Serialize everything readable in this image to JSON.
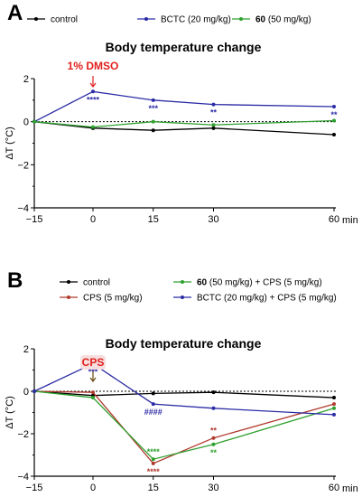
{
  "colors": {
    "control": "#000000",
    "bctc": "#2b2ba6",
    "cmpd60": "#2ea02e",
    "cps": "#b03a2e",
    "annotation": "#e0211f",
    "annotation_bg": "#f6dede"
  },
  "chart_data": [
    {
      "type": "line",
      "panel": "A",
      "title": "Body temperature change",
      "ylabel": "ΔT (°C)",
      "x_unit": "min",
      "x": [
        -15,
        0,
        15,
        30,
        60
      ],
      "x_ticks": [
        "−15",
        "0",
        "15",
        "30",
        "60"
      ],
      "ylim": [
        -4,
        2
      ],
      "y_ticks": [
        "2",
        "0",
        "−2",
        "−4"
      ],
      "baseline": 0,
      "legend": [
        {
          "name_bold": "",
          "name": "control",
          "color_key": "control"
        },
        {
          "name_bold": "",
          "name": "BCTC (20 mg/kg)",
          "color_key": "bctc"
        },
        {
          "name_bold": "60",
          "name": " (50 mg/kg)",
          "color_key": "cmpd60"
        }
      ],
      "series": [
        {
          "name": "control",
          "color_key": "control",
          "values": [
            0,
            -0.3,
            -0.4,
            -0.3,
            -0.6
          ]
        },
        {
          "name": "BCTC (20 mg/kg)",
          "color_key": "bctc",
          "values": [
            0,
            1.4,
            1.0,
            0.8,
            0.7
          ]
        },
        {
          "name": "60 (50 mg/kg)",
          "color_key": "cmpd60",
          "values": [
            0,
            -0.25,
            0.0,
            -0.15,
            0.05
          ]
        }
      ],
      "significance": [
        {
          "x": 0,
          "text": "****",
          "color_key": "bctc",
          "anchor_y": 1.4,
          "side": "below"
        },
        {
          "x": 15,
          "text": "***",
          "color_key": "bctc",
          "anchor_y": 1.0,
          "side": "below"
        },
        {
          "x": 30,
          "text": "**",
          "color_key": "bctc",
          "anchor_y": 0.8,
          "side": "below"
        },
        {
          "x": 60,
          "text": "**",
          "color_key": "bctc",
          "anchor_y": 0.7,
          "side": "below"
        }
      ],
      "annotation": {
        "text": "1% DMSO",
        "x": 0,
        "color_key": "annotation"
      }
    },
    {
      "type": "line",
      "panel": "B",
      "title": "Body temperature change",
      "ylabel": "ΔT (°C)",
      "x_unit": "min",
      "x": [
        -15,
        0,
        15,
        30,
        60
      ],
      "x_ticks": [
        "−15",
        "0",
        "15",
        "30",
        "60"
      ],
      "ylim": [
        -4,
        2
      ],
      "y_ticks": [
        "2",
        "0",
        "−2",
        "−4"
      ],
      "baseline": 0,
      "legend": [
        {
          "name_bold": "",
          "name": "control",
          "color_key": "control"
        },
        {
          "name_bold": "",
          "name": "CPS (5 mg/kg)",
          "color_key": "cps"
        },
        {
          "name_bold": "60",
          "name": " (50 mg/kg) + CPS (5 mg/kg)",
          "color_key": "cmpd60"
        },
        {
          "name_bold": "",
          "name": "BCTC (20 mg/kg) + CPS (5 mg/kg)",
          "color_key": "bctc"
        }
      ],
      "series": [
        {
          "name": "control",
          "color_key": "control",
          "values": [
            0,
            -0.2,
            -0.1,
            -0.05,
            -0.3
          ]
        },
        {
          "name": "CPS (5 mg/kg)",
          "color_key": "cps",
          "values": [
            0,
            -0.05,
            -3.4,
            -2.2,
            -0.6
          ]
        },
        {
          "name": "60 (50 mg/kg) + CPS (5 mg/kg)",
          "color_key": "cmpd60",
          "values": [
            0,
            -0.3,
            -3.2,
            -2.5,
            -0.8
          ]
        },
        {
          "name": "BCTC (20 mg/kg) + CPS (5 mg/kg)",
          "color_key": "bctc",
          "values": [
            0,
            1.3,
            -0.6,
            -0.8,
            -1.1
          ]
        }
      ],
      "significance": [
        {
          "x": 0,
          "text": "***",
          "color_key": "bctc",
          "anchor_y": 1.3,
          "side": "below"
        },
        {
          "x": 15,
          "text": "####",
          "color_key": "bctc",
          "anchor_y": -0.6,
          "side": "below"
        },
        {
          "x": 15,
          "text": "****",
          "color_key": "cmpd60",
          "anchor_y": -3.2,
          "side": "above"
        },
        {
          "x": 15,
          "text": "****",
          "color_key": "cps",
          "anchor_y": -3.4,
          "side": "below"
        },
        {
          "x": 30,
          "text": "**",
          "color_key": "cps",
          "anchor_y": -2.2,
          "side": "above"
        },
        {
          "x": 30,
          "text": "**",
          "color_key": "cmpd60",
          "anchor_y": -2.5,
          "side": "below"
        }
      ],
      "annotation": {
        "text": "CPS",
        "x": 0,
        "color_key": "annotation",
        "boxed": true
      }
    }
  ]
}
